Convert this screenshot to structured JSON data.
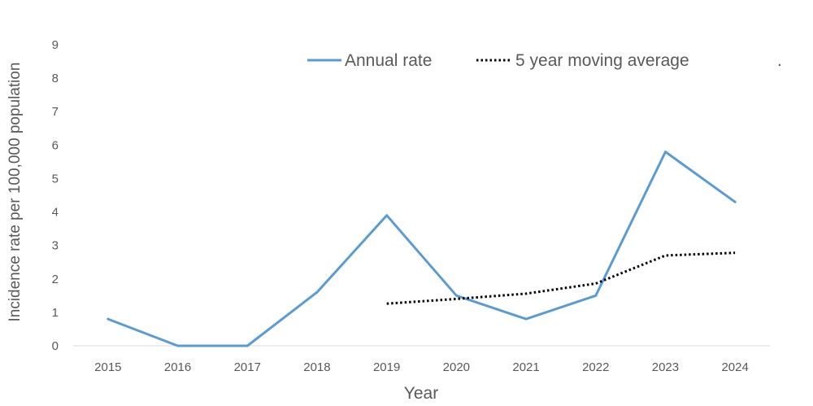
{
  "chart_data": {
    "type": "line",
    "title": "",
    "xlabel": "Year",
    "ylabel": "Incidence rate per 100,000 population",
    "categories": [
      "2015",
      "2016",
      "2017",
      "2018",
      "2019",
      "2020",
      "2021",
      "2022",
      "2023",
      "2024"
    ],
    "ylim": [
      0,
      9
    ],
    "yticks": [
      "0",
      "1",
      "2",
      "3",
      "4",
      "5",
      "6",
      "7",
      "8",
      "9"
    ],
    "grid": false,
    "legend_position": "top",
    "legend_note": ".",
    "series": [
      {
        "name": "Annual rate",
        "style": "solid",
        "color": "#5b9bd5",
        "values": [
          0.8,
          0.0,
          0.0,
          1.6,
          3.9,
          1.5,
          0.8,
          1.5,
          5.8,
          4.3
        ]
      },
      {
        "name": "5 year moving average",
        "style": "dotted",
        "color": "#000000",
        "values": [
          null,
          null,
          null,
          null,
          1.26,
          1.4,
          1.56,
          1.86,
          2.7,
          2.78
        ]
      }
    ]
  }
}
